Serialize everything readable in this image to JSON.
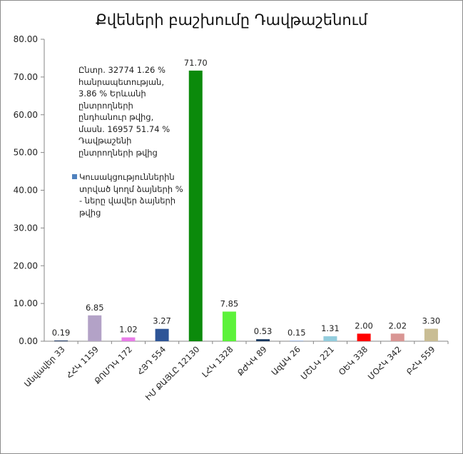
{
  "chart_data": {
    "type": "bar",
    "title": "Քվեների բաշխումը Դավթաշենում",
    "categories": [
      "Անվավեր 33",
      "ՀՀԿ 1159",
      "ՔՈՄԴԿ 172",
      "ՀՅԴ 554",
      "ԻՄ ՔԱՅԼԸ 12130",
      "ԼՀԿ 1328",
      "ՔԺԿԿ 89",
      "ԱզԱԿ 26",
      "ՄՇՆԿ 221",
      "ՕԵԿ 338",
      "ՄՕՀԿ 342",
      "ԲՀԿ 559"
    ],
    "values": [
      0.19,
      6.85,
      1.02,
      3.27,
      71.7,
      7.85,
      0.53,
      0.15,
      1.31,
      2.0,
      2.02,
      3.3
    ],
    "value_labels": [
      "0.19",
      "6.85",
      "1.02",
      "3.27",
      "71.70",
      "7.85",
      "0.53",
      "0.15",
      "1.31",
      "2.00",
      "2.02",
      "3.30"
    ],
    "colors": [
      "#1f3864",
      "#b3a2c7",
      "#e87de8",
      "#2e5597",
      "#0b8a0b",
      "#5cf23a",
      "#17375e",
      "#8faadc",
      "#93cddd",
      "#ff0000",
      "#d99694",
      "#c9bd94"
    ],
    "ylim": [
      0,
      80
    ],
    "yticks": [
      "0.00",
      "10.00",
      "20.00",
      "30.00",
      "40.00",
      "50.00",
      "60.00",
      "70.00",
      "80.00"
    ],
    "ytick_values": [
      0,
      10,
      20,
      30,
      40,
      50,
      60,
      70,
      80
    ],
    "grid": false,
    "xlabel": "",
    "ylabel": "",
    "note_lines": [
      "Ընտր. 32774 1.26 %",
      "հանրապետության,",
      "3.86 % Երևանի",
      "ընտրողների",
      "ընդհանուր թվից,",
      "մասն.  16957 51.74 %",
      "Դավթաշենի",
      "ընտրողների թվից"
    ],
    "legend": {
      "label": "Կուսակցություններին տրված կողմ ձայների % - ները վավեր ձայների թվից",
      "color": "#4f81bd",
      "position": "top-left"
    }
  }
}
